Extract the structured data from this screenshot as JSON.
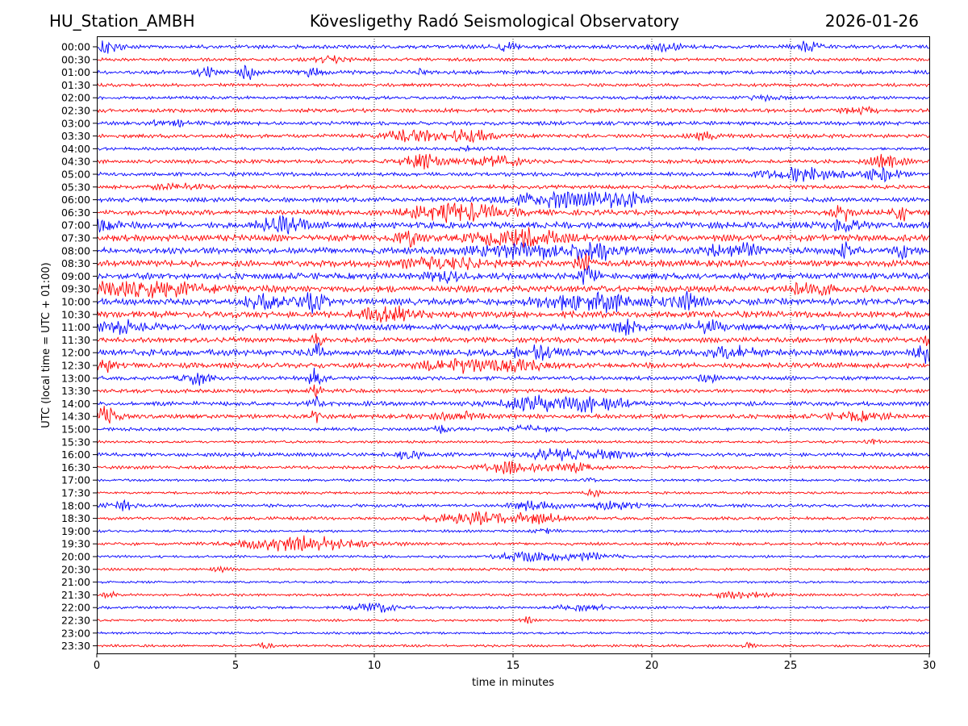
{
  "header": {
    "station": "HU_Station_AMBH",
    "observatory": "Kövesligethy Radó Seismological Observatory",
    "date": "2026-01-26"
  },
  "chart_data": {
    "type": "line",
    "title": "Kövesligethy Radó Seismological Observatory",
    "xlabel": "time in minutes",
    "ylabel": "UTC (local time = UTC + 01:00)",
    "xlim": [
      0,
      30
    ],
    "xticks": [
      0,
      5,
      10,
      15,
      20,
      25,
      30
    ],
    "grid": "vertical dotted lines at each x tick",
    "row_colors": [
      "#0000ff",
      "#ff0000"
    ],
    "rows": [
      {
        "label": "00:00",
        "color": "#0000ff",
        "amp": 3,
        "bursts": [
          {
            "t": 0.3,
            "amp": 11,
            "dur": 0.5
          },
          {
            "t": 14.7,
            "amp": 7,
            "dur": 0.4
          },
          {
            "t": 20.5,
            "amp": 6,
            "dur": 0.5
          },
          {
            "t": 25.6,
            "amp": 7,
            "dur": 0.4
          }
        ]
      },
      {
        "label": "00:30",
        "color": "#ff0000",
        "amp": 2.5,
        "bursts": [
          {
            "t": 8.5,
            "amp": 4,
            "dur": 0.7
          }
        ]
      },
      {
        "label": "01:00",
        "color": "#0000ff",
        "amp": 3,
        "bursts": [
          {
            "t": 4.0,
            "amp": 6,
            "dur": 0.4
          },
          {
            "t": 5.5,
            "amp": 10,
            "dur": 0.4
          },
          {
            "t": 7.7,
            "amp": 6,
            "dur": 0.4
          },
          {
            "t": 11.7,
            "amp": 5,
            "dur": 0.2
          }
        ]
      },
      {
        "label": "01:30",
        "color": "#ff0000",
        "amp": 2.5,
        "bursts": []
      },
      {
        "label": "02:00",
        "color": "#0000ff",
        "amp": 2.5,
        "bursts": [
          {
            "t": 24.0,
            "amp": 3,
            "dur": 0.6
          }
        ]
      },
      {
        "label": "02:30",
        "color": "#ff0000",
        "amp": 3,
        "bursts": [
          {
            "t": 27.5,
            "amp": 4,
            "dur": 0.6
          }
        ]
      },
      {
        "label": "03:00",
        "color": "#0000ff",
        "amp": 3,
        "bursts": [
          {
            "t": 2.5,
            "amp": 4,
            "dur": 0.8
          }
        ]
      },
      {
        "label": "03:30",
        "color": "#ff0000",
        "amp": 3,
        "bursts": [
          {
            "t": 11.3,
            "amp": 8,
            "dur": 1.0
          },
          {
            "t": 13.5,
            "amp": 8,
            "dur": 1.0
          },
          {
            "t": 22.0,
            "amp": 5,
            "dur": 0.5
          }
        ]
      },
      {
        "label": "04:00",
        "color": "#0000ff",
        "amp": 2.5,
        "bursts": [
          {
            "t": 13.3,
            "amp": 4,
            "dur": 0.3
          }
        ]
      },
      {
        "label": "04:30",
        "color": "#ff0000",
        "amp": 3,
        "bursts": [
          {
            "t": 11.8,
            "amp": 10,
            "dur": 0.8
          },
          {
            "t": 14.4,
            "amp": 9,
            "dur": 0.8
          },
          {
            "t": 28.4,
            "amp": 10,
            "dur": 0.6
          }
        ]
      },
      {
        "label": "05:00",
        "color": "#0000ff",
        "amp": 3,
        "bursts": [
          {
            "t": 25.5,
            "amp": 9,
            "dur": 1.5
          },
          {
            "t": 28.3,
            "amp": 10,
            "dur": 0.6
          }
        ]
      },
      {
        "label": "05:30",
        "color": "#ff0000",
        "amp": 3,
        "bursts": [
          {
            "t": 3.0,
            "amp": 4,
            "dur": 1.0
          }
        ]
      },
      {
        "label": "06:00",
        "color": "#0000ff",
        "amp": 3.5,
        "bursts": [
          {
            "t": 16.8,
            "amp": 11,
            "dur": 2.0
          },
          {
            "t": 19.0,
            "amp": 9,
            "dur": 0.7
          }
        ]
      },
      {
        "label": "06:30",
        "color": "#ff0000",
        "amp": 4,
        "bursts": [
          {
            "t": 13.0,
            "amp": 13,
            "dur": 1.8
          },
          {
            "t": 26.9,
            "amp": 11,
            "dur": 0.3
          },
          {
            "t": 29.0,
            "amp": 10,
            "dur": 0.3
          }
        ]
      },
      {
        "label": "07:00",
        "color": "#0000ff",
        "amp": 5,
        "bursts": [
          {
            "t": 0.2,
            "amp": 12,
            "dur": 0.4
          },
          {
            "t": 6.7,
            "amp": 11,
            "dur": 0.8
          },
          {
            "t": 27.0,
            "amp": 9,
            "dur": 0.5
          }
        ]
      },
      {
        "label": "07:30",
        "color": "#ff0000",
        "amp": 5,
        "bursts": [
          {
            "t": 11.2,
            "amp": 11,
            "dur": 0.4
          },
          {
            "t": 15.2,
            "amp": 12,
            "dur": 1.5
          }
        ]
      },
      {
        "label": "08:00",
        "color": "#0000ff",
        "amp": 5,
        "bursts": [
          {
            "t": 15.8,
            "amp": 10,
            "dur": 2.0
          },
          {
            "t": 18.3,
            "amp": 10,
            "dur": 0.8
          },
          {
            "t": 23.0,
            "amp": 10,
            "dur": 1.0
          },
          {
            "t": 27.0,
            "amp": 9,
            "dur": 0.4
          },
          {
            "t": 29.1,
            "amp": 10,
            "dur": 0.5
          }
        ]
      },
      {
        "label": "08:30",
        "color": "#ff0000",
        "amp": 5,
        "bursts": [
          {
            "t": 12.5,
            "amp": 8,
            "dur": 1.5
          },
          {
            "t": 17.6,
            "amp": 14,
            "dur": 0.3
          }
        ]
      },
      {
        "label": "09:00",
        "color": "#0000ff",
        "amp": 5,
        "bursts": [
          {
            "t": 12.5,
            "amp": 10,
            "dur": 0.5
          },
          {
            "t": 17.7,
            "amp": 14,
            "dur": 0.3
          }
        ]
      },
      {
        "label": "09:30",
        "color": "#ff0000",
        "amp": 5,
        "bursts": [
          {
            "t": 1.5,
            "amp": 10,
            "dur": 2.5
          },
          {
            "t": 25.5,
            "amp": 8,
            "dur": 1.0
          }
        ]
      },
      {
        "label": "10:00",
        "color": "#0000ff",
        "amp": 5,
        "bursts": [
          {
            "t": 6.2,
            "amp": 11,
            "dur": 0.8
          },
          {
            "t": 7.8,
            "amp": 13,
            "dur": 0.5
          },
          {
            "t": 18.0,
            "amp": 12,
            "dur": 2.0
          },
          {
            "t": 21.2,
            "amp": 11,
            "dur": 0.5
          }
        ]
      },
      {
        "label": "10:30",
        "color": "#ff0000",
        "amp": 5,
        "bursts": [
          {
            "t": 10.5,
            "amp": 11,
            "dur": 1.0
          }
        ]
      },
      {
        "label": "11:00",
        "color": "#0000ff",
        "amp": 5,
        "bursts": [
          {
            "t": 0.8,
            "amp": 8,
            "dur": 1.0
          },
          {
            "t": 19.0,
            "amp": 10,
            "dur": 0.5
          },
          {
            "t": 22.0,
            "amp": 10,
            "dur": 0.5
          }
        ]
      },
      {
        "label": "11:30",
        "color": "#ff0000",
        "amp": 4,
        "bursts": [
          {
            "t": 7.9,
            "amp": 12,
            "dur": 0.2
          },
          {
            "t": 29.9,
            "amp": 12,
            "dur": 0.2
          }
        ]
      },
      {
        "label": "12:00",
        "color": "#0000ff",
        "amp": 5,
        "bursts": [
          {
            "t": 7.9,
            "amp": 16,
            "dur": 0.2
          },
          {
            "t": 15.8,
            "amp": 9,
            "dur": 1.0
          },
          {
            "t": 23.0,
            "amp": 9,
            "dur": 0.8
          },
          {
            "t": 29.8,
            "amp": 14,
            "dur": 0.3
          }
        ]
      },
      {
        "label": "12:30",
        "color": "#ff0000",
        "amp": 4,
        "bursts": [
          {
            "t": 0.2,
            "amp": 10,
            "dur": 0.4
          },
          {
            "t": 13.0,
            "amp": 10,
            "dur": 1.2
          },
          {
            "t": 15.2,
            "amp": 8,
            "dur": 1.0
          }
        ]
      },
      {
        "label": "13:00",
        "color": "#0000ff",
        "amp": 3,
        "bursts": [
          {
            "t": 3.5,
            "amp": 10,
            "dur": 0.5
          },
          {
            "t": 7.9,
            "amp": 14,
            "dur": 0.3
          },
          {
            "t": 22.0,
            "amp": 5,
            "dur": 0.4
          }
        ]
      },
      {
        "label": "13:30",
        "color": "#ff0000",
        "amp": 3,
        "bursts": [
          {
            "t": 7.9,
            "amp": 10,
            "dur": 0.2
          }
        ]
      },
      {
        "label": "14:00",
        "color": "#0000ff",
        "amp": 3.5,
        "bursts": [
          {
            "t": 7.9,
            "amp": 12,
            "dur": 0.2
          },
          {
            "t": 15.8,
            "amp": 10,
            "dur": 1.2
          },
          {
            "t": 18.0,
            "amp": 10,
            "dur": 1.2
          }
        ]
      },
      {
        "label": "14:30",
        "color": "#ff0000",
        "amp": 3.5,
        "bursts": [
          {
            "t": 0.3,
            "amp": 12,
            "dur": 0.5
          },
          {
            "t": 7.9,
            "amp": 12,
            "dur": 0.2
          },
          {
            "t": 13.0,
            "amp": 6,
            "dur": 0.8
          },
          {
            "t": 27.5,
            "amp": 6,
            "dur": 1.0
          }
        ]
      },
      {
        "label": "15:00",
        "color": "#0000ff",
        "amp": 2.5,
        "bursts": [
          {
            "t": 12.5,
            "amp": 8,
            "dur": 0.3
          },
          {
            "t": 15.5,
            "amp": 4,
            "dur": 1.0
          }
        ]
      },
      {
        "label": "15:30",
        "color": "#ff0000",
        "amp": 2,
        "bursts": [
          {
            "t": 27.9,
            "amp": 4,
            "dur": 0.3
          }
        ]
      },
      {
        "label": "16:00",
        "color": "#0000ff",
        "amp": 3,
        "bursts": [
          {
            "t": 11.2,
            "amp": 6,
            "dur": 0.5
          },
          {
            "t": 16.5,
            "amp": 8,
            "dur": 1.0
          },
          {
            "t": 18.5,
            "amp": 5,
            "dur": 0.8
          }
        ]
      },
      {
        "label": "16:30",
        "color": "#ff0000",
        "amp": 2.5,
        "bursts": [
          {
            "t": 15.0,
            "amp": 9,
            "dur": 1.0
          },
          {
            "t": 17.2,
            "amp": 7,
            "dur": 0.8
          }
        ]
      },
      {
        "label": "17:00",
        "color": "#0000ff",
        "amp": 2,
        "bursts": [
          {
            "t": 17.7,
            "amp": 3,
            "dur": 0.3
          }
        ]
      },
      {
        "label": "17:30",
        "color": "#ff0000",
        "amp": 2,
        "bursts": [
          {
            "t": 17.9,
            "amp": 5,
            "dur": 0.3
          }
        ]
      },
      {
        "label": "18:00",
        "color": "#0000ff",
        "amp": 2.5,
        "bursts": [
          {
            "t": 0.9,
            "amp": 6,
            "dur": 0.5
          },
          {
            "t": 15.8,
            "amp": 7,
            "dur": 0.8
          },
          {
            "t": 18.5,
            "amp": 6,
            "dur": 1.0
          }
        ]
      },
      {
        "label": "18:30",
        "color": "#ff0000",
        "amp": 2.5,
        "bursts": [
          {
            "t": 13.5,
            "amp": 8,
            "dur": 1.5
          },
          {
            "t": 15.8,
            "amp": 7,
            "dur": 1.0
          }
        ]
      },
      {
        "label": "19:00",
        "color": "#0000ff",
        "amp": 2,
        "bursts": [
          {
            "t": 16.2,
            "amp": 3,
            "dur": 0.4
          }
        ]
      },
      {
        "label": "19:30",
        "color": "#ff0000",
        "amp": 2.5,
        "bursts": [
          {
            "t": 7.3,
            "amp": 11,
            "dur": 2.0
          }
        ]
      },
      {
        "label": "20:00",
        "color": "#0000ff",
        "amp": 2,
        "bursts": [
          {
            "t": 15.5,
            "amp": 7,
            "dur": 1.0
          },
          {
            "t": 17.5,
            "amp": 6,
            "dur": 1.0
          }
        ]
      },
      {
        "label": "20:30",
        "color": "#ff0000",
        "amp": 2,
        "bursts": [
          {
            "t": 4.5,
            "amp": 3,
            "dur": 0.3
          }
        ]
      },
      {
        "label": "21:00",
        "color": "#0000ff",
        "amp": 1.8,
        "bursts": []
      },
      {
        "label": "21:30",
        "color": "#ff0000",
        "amp": 2,
        "bursts": [
          {
            "t": 0.5,
            "amp": 4,
            "dur": 0.3
          },
          {
            "t": 23.0,
            "amp": 4,
            "dur": 1.2
          }
        ]
      },
      {
        "label": "22:00",
        "color": "#0000ff",
        "amp": 2,
        "bursts": [
          {
            "t": 10.0,
            "amp": 7,
            "dur": 0.8
          },
          {
            "t": 17.5,
            "amp": 4,
            "dur": 1.0
          }
        ]
      },
      {
        "label": "22:30",
        "color": "#ff0000",
        "amp": 1.8,
        "bursts": [
          {
            "t": 15.5,
            "amp": 5,
            "dur": 0.2
          }
        ]
      },
      {
        "label": "23:00",
        "color": "#0000ff",
        "amp": 1.8,
        "bursts": []
      },
      {
        "label": "23:30",
        "color": "#ff0000",
        "amp": 2,
        "bursts": [
          {
            "t": 6.0,
            "amp": 4,
            "dur": 0.3
          },
          {
            "t": 23.5,
            "amp": 6,
            "dur": 0.2
          }
        ]
      }
    ]
  }
}
